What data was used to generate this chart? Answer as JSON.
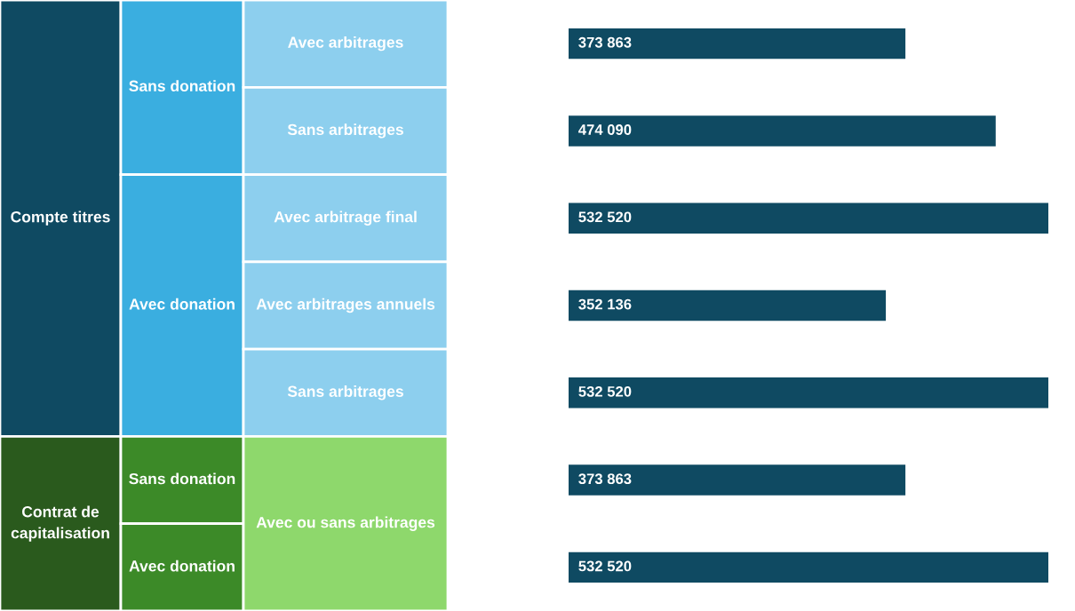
{
  "chart_data": {
    "type": "bar",
    "orientation": "horizontal",
    "categories": [
      "Avec arbitrages",
      "Sans arbitrages",
      "Avec arbitrage final",
      "Avec arbitrages annuels",
      "Sans arbitrages",
      "Avec ou sans arbitrages",
      null
    ],
    "values": [
      373863,
      474090,
      532520,
      352136,
      532520,
      373863,
      532520
    ],
    "color": "#0f4a62",
    "value_labels": [
      "373 863",
      "474 090",
      "532 520",
      "352 136",
      "532 520",
      "373 863",
      "532 520"
    ],
    "annotations": [
      "Compte titres",
      "Sans donation",
      "Avec donation",
      "Contrat de\ncapitalisation",
      "Sans donation",
      "Avec donation"
    ],
    "legend": false
  }
}
